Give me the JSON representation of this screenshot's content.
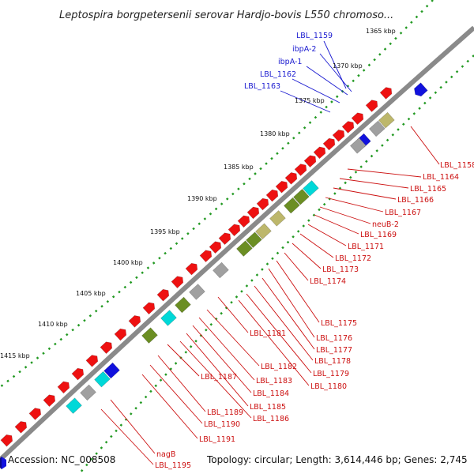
{
  "title": "Leptospira borgpetersenii serovar Hardjo-bovis L550 chromoso...",
  "footer": {
    "accession": "Accession: NC_008508",
    "topology": "Topology: circular; Length: 3,614,446 bp; Genes: 2,745"
  },
  "colors": {
    "forward": "#ee1111",
    "reverse": "#1111dd",
    "pseudo": "#a0a0a0",
    "rrna": "#bdb76b",
    "trna": "#00d8d8",
    "other": "#6b8e23",
    "label_blue": "#1a1ad0",
    "label_red": "#cc1010",
    "backbone": "#8a8a8a",
    "tick": "#229922"
  },
  "ticks": [
    {
      "label": "1365 kbp"
    },
    {
      "label": "1370 kbp"
    },
    {
      "label": "1375 kbp"
    },
    {
      "label": "1380 kbp"
    },
    {
      "label": "1385 kbp"
    },
    {
      "label": "1390 kbp"
    },
    {
      "label": "1395 kbp"
    },
    {
      "label": "1400 kbp"
    },
    {
      "label": "1405 kbp"
    },
    {
      "label": "1410 kbp"
    },
    {
      "label": "1415 kbp"
    }
  ],
  "labels_blue": [
    "LBL_1159",
    "ibpA-2",
    "ibpA-1",
    "LBL_1162",
    "LBL_1163"
  ],
  "labels_red": [
    "LBL_1158",
    "LBL_1164",
    "LBL_1165",
    "LBL_1166",
    "LBL_1167",
    "neuB-2",
    "LBL_1169",
    "LBL_1171",
    "LBL_1172",
    "LBL_1173",
    "LBL_1174",
    "LBL_1175",
    "LBL_1176",
    "LBL_1177",
    "LBL_1178",
    "LBL_1179",
    "LBL_1180",
    "LBL_1181",
    "LBL_1182",
    "LBL_1183",
    "LBL_1184",
    "LBL_1185",
    "LBL_1186",
    "LBL_1187",
    "LBL_1189",
    "LBL_1190",
    "LBL_1191",
    "nagB",
    "LBL_1195"
  ]
}
